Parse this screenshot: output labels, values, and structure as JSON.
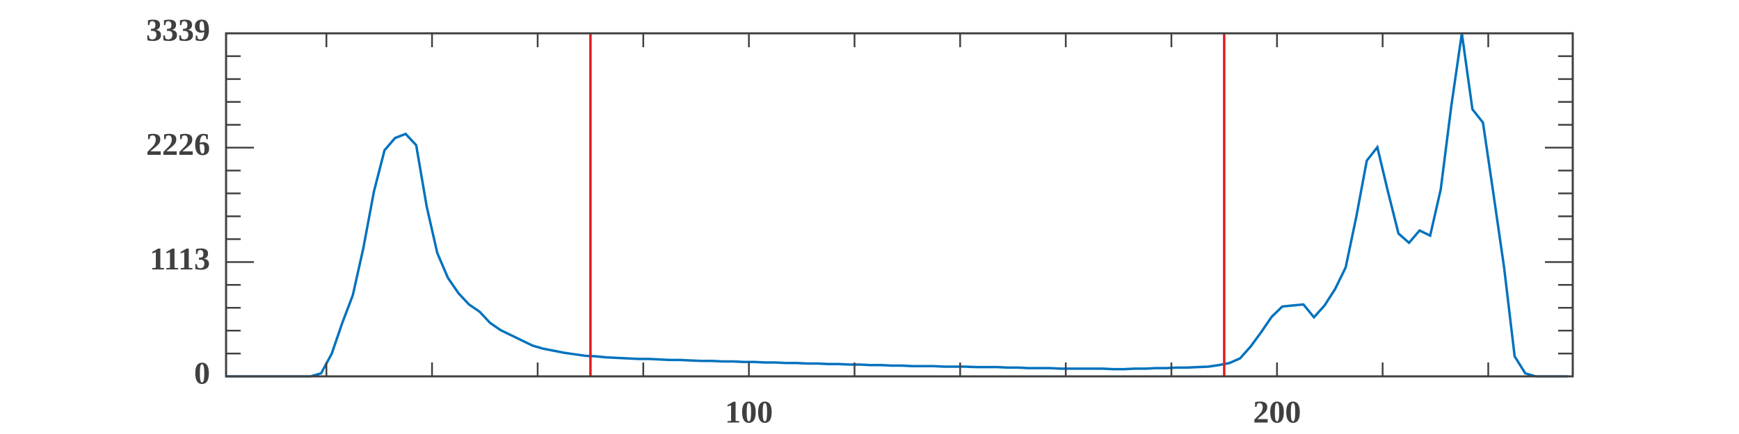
{
  "chart_data": {
    "type": "line",
    "x": [
      1,
      3,
      5,
      7,
      9,
      11,
      13,
      15,
      17,
      19,
      21,
      23,
      25,
      27,
      29,
      31,
      33,
      35,
      37,
      39,
      41,
      43,
      45,
      47,
      49,
      51,
      53,
      55,
      57,
      59,
      61,
      63,
      65,
      67,
      69,
      71,
      73,
      75,
      77,
      79,
      81,
      83,
      85,
      87,
      89,
      91,
      93,
      95,
      97,
      99,
      101,
      103,
      105,
      107,
      109,
      111,
      113,
      115,
      117,
      119,
      121,
      123,
      125,
      127,
      129,
      131,
      133,
      135,
      137,
      139,
      141,
      143,
      145,
      147,
      149,
      151,
      153,
      155,
      157,
      159,
      161,
      163,
      165,
      167,
      169,
      171,
      173,
      175,
      177,
      179,
      181,
      183,
      185,
      187,
      189,
      191,
      193,
      195,
      197,
      199,
      201,
      203,
      205,
      207,
      209,
      211,
      213,
      215,
      217,
      219,
      221,
      223,
      225,
      227,
      229,
      231,
      233,
      235,
      237,
      239,
      241,
      243,
      245,
      247,
      249,
      251,
      253,
      255
    ],
    "series": [
      {
        "color": "#0072bd",
        "values": [
          0,
          0,
          0,
          0,
          0,
          0,
          0,
          0,
          0,
          30,
          220,
          520,
          790,
          1250,
          1800,
          2200,
          2320,
          2360,
          2250,
          1650,
          1200,
          960,
          810,
          700,
          630,
          520,
          450,
          400,
          350,
          300,
          270,
          250,
          230,
          215,
          200,
          195,
          185,
          180,
          175,
          170,
          170,
          165,
          160,
          160,
          155,
          150,
          150,
          145,
          145,
          140,
          140,
          135,
          135,
          130,
          130,
          125,
          125,
          120,
          120,
          115,
          115,
          110,
          110,
          105,
          105,
          100,
          100,
          100,
          95,
          95,
          95,
          90,
          90,
          90,
          85,
          85,
          80,
          80,
          80,
          75,
          75,
          75,
          75,
          75,
          70,
          70,
          75,
          75,
          80,
          80,
          85,
          85,
          90,
          95,
          110,
          130,
          175,
          290,
          430,
          580,
          680,
          690,
          700,
          575,
          690,
          850,
          1060,
          1550,
          2100,
          2230,
          1800,
          1390,
          1300,
          1420,
          1370,
          1820,
          2630,
          3339,
          2600,
          2470,
          1770,
          1060,
          195,
          30,
          0,
          0,
          0,
          0
        ]
      }
    ],
    "xlim": [
      1,
      256
    ],
    "xticks": [
      100,
      200
    ],
    "xminorticks": [
      20,
      40,
      60,
      80,
      100,
      120,
      140,
      160,
      180,
      200,
      220,
      240
    ],
    "ylim": [
      0,
      3339
    ],
    "yticks": [
      0,
      1113,
      2226,
      3339
    ],
    "yminorticks": [
      222.6,
      445.2,
      667.8,
      890.4,
      1335.6,
      1558.2,
      1780.8,
      2003.4,
      2448.6,
      2671.2,
      2893.8,
      3116.4
    ],
    "vlines": [
      70,
      190
    ],
    "vline_color": "#e41a1c"
  }
}
